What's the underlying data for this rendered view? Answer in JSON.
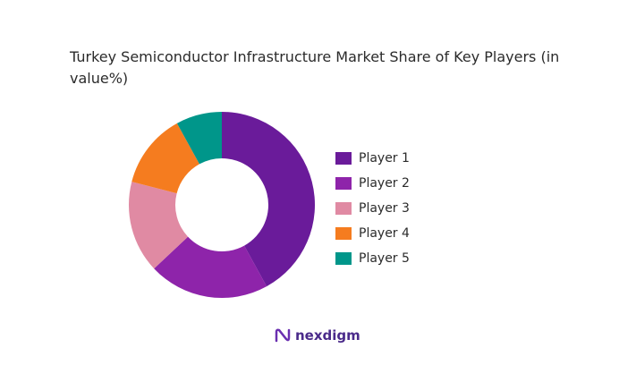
{
  "title": "Turkey Semiconductor Infrastructure Market Share of Key Players (in value%)",
  "brand": {
    "name": "nexdigm"
  },
  "chart_data": {
    "type": "pie",
    "donut": true,
    "title": "Turkey Semiconductor Infrastructure Market Share of Key Players (in value%)",
    "legend_position": "right",
    "categories": [
      "Player 1",
      "Player 2",
      "Player 3",
      "Player 4",
      "Player 5"
    ],
    "values": [
      42,
      21,
      16,
      13,
      8
    ],
    "colors": [
      "#6a1b9a",
      "#8e24aa",
      "#e08aa3",
      "#f57c1f",
      "#00968a"
    ]
  }
}
